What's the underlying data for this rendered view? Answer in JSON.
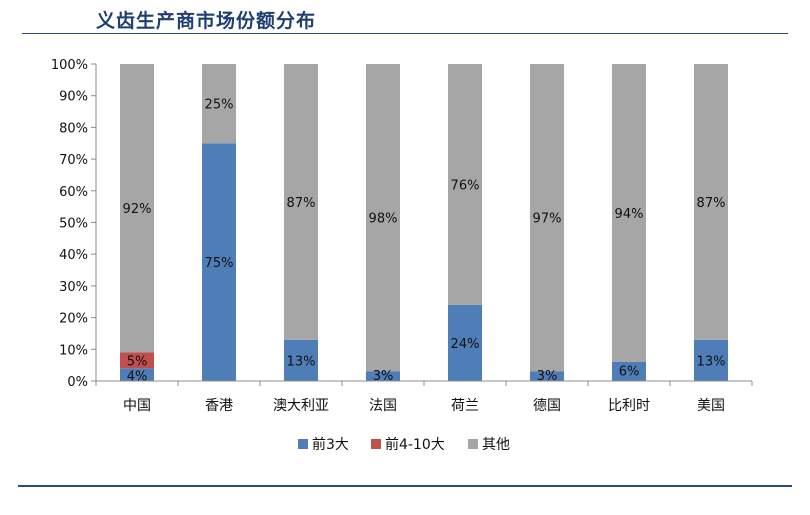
{
  "page": {
    "title": "义齿生产商市场份额分布"
  },
  "chart_data": {
    "type": "bar",
    "stacked": true,
    "percent_stacked": true,
    "categories": [
      "中国",
      "香港",
      "澳大利亚",
      "法国",
      "荷兰",
      "德国",
      "比利时",
      "美国"
    ],
    "series": [
      {
        "name": "前3大",
        "color": "#4f7db8",
        "values": [
          4,
          75,
          13,
          3,
          24,
          3,
          6,
          13
        ],
        "labels": [
          "4%",
          "75%",
          "13%",
          "3%",
          "24%",
          "3%",
          "6%",
          "13%"
        ]
      },
      {
        "name": "前4-10大",
        "color": "#c0504d",
        "values": [
          5,
          0,
          0,
          0,
          0,
          0,
          0,
          0
        ],
        "labels": [
          "5%",
          "",
          "",
          "",
          "",
          "",
          "",
          ""
        ]
      },
      {
        "name": "其他",
        "color": "#a6a6a6",
        "values": [
          92,
          25,
          87,
          98,
          76,
          97,
          94,
          87
        ],
        "labels": [
          "92%",
          "25%",
          "87%",
          "98%",
          "76%",
          "97%",
          "94%",
          "87%"
        ]
      }
    ],
    "y_ticks": [
      "0%",
      "10%",
      "20%",
      "30%",
      "40%",
      "50%",
      "60%",
      "70%",
      "80%",
      "90%",
      "100%"
    ],
    "ylim": [
      0,
      100
    ],
    "grid": false,
    "legend_position": "bottom"
  }
}
